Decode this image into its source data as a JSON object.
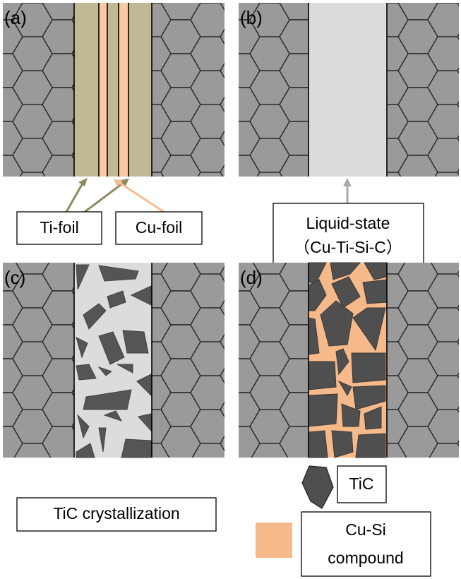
{
  "panels": [
    {
      "label": "(a)"
    },
    {
      "label": "(b)"
    },
    {
      "label": "(c)"
    },
    {
      "label": "(d)"
    }
  ],
  "callouts": {
    "ti_foil": "Ti-foil",
    "cu_foil": "Cu-foil",
    "liquid_state": [
      "Liquid-state",
      "（Cu-Ti-Si-C）"
    ],
    "crystallization": "TiC crystallization"
  },
  "legend": {
    "tic": "TiC",
    "cu_si": [
      "Cu-Si",
      "compound"
    ]
  }
}
